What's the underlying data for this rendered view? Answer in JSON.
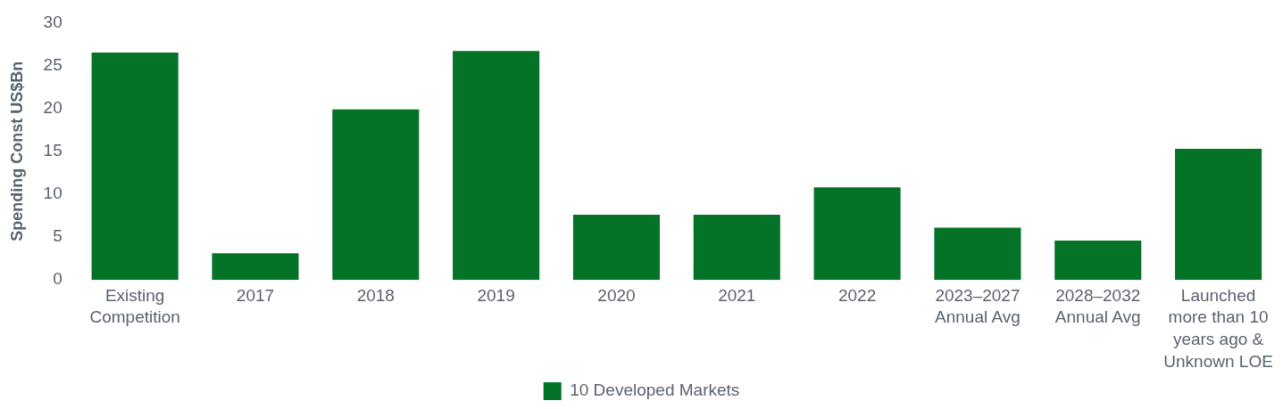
{
  "chart_data": {
    "type": "bar",
    "ylabel": "Spending Const US$Bn",
    "categories": [
      "Existing Competition",
      "2017",
      "2018",
      "2019",
      "2020",
      "2021",
      "2022",
      "2023–2027 Annual Avg",
      "2028–2032 Annual Avg",
      "Launched more than 10 years ago & Unknown LOE"
    ],
    "series": [
      {
        "name": "10 Developed Markets",
        "color": "#047227",
        "values": [
          26.5,
          3.1,
          19.9,
          26.7,
          7.6,
          7.6,
          10.8,
          6.1,
          4.6,
          15.3
        ]
      }
    ],
    "ylim": [
      0,
      30
    ],
    "yticks": [
      0,
      5,
      10,
      15,
      20,
      25,
      30
    ],
    "grid": false,
    "legend": "bottom"
  }
}
